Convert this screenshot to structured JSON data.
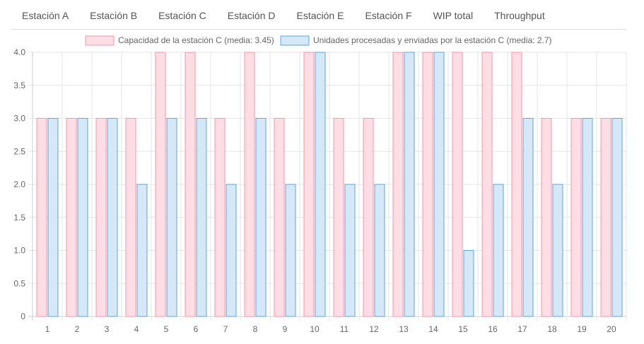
{
  "tabs": [
    "Estación A",
    "Estación B",
    "Estación C",
    "Estación D",
    "Estación E",
    "Estación F",
    "WIP total",
    "Throughput"
  ],
  "colors": {
    "capacity_fill": "#ffdde4",
    "capacity_stroke": "#ff93a8",
    "processed_fill": "#d4e8f8",
    "processed_stroke": "#5aa9e0",
    "grid": "#e6e6e6",
    "axis": "#cccccc",
    "text": "#666666"
  },
  "chart_data": {
    "type": "bar",
    "categories": [
      "1",
      "2",
      "3",
      "4",
      "5",
      "6",
      "7",
      "8",
      "9",
      "10",
      "11",
      "12",
      "13",
      "14",
      "15",
      "16",
      "17",
      "18",
      "19",
      "20"
    ],
    "series": [
      {
        "name": "Capacidad de la estación C (media: 3.45)",
        "values": [
          3,
          3,
          3,
          3,
          4,
          4,
          3,
          4,
          3,
          4,
          3,
          3,
          4,
          4,
          4,
          4,
          4,
          3,
          3,
          3
        ]
      },
      {
        "name": "Unidades procesadas y enviadas por la estación C (media: 2.7)",
        "values": [
          3,
          3,
          3,
          2,
          3,
          3,
          2,
          3,
          2,
          4,
          2,
          2,
          4,
          4,
          1,
          2,
          3,
          2,
          3,
          3
        ]
      }
    ],
    "ylim": [
      0,
      4
    ],
    "yticks": [
      "0",
      "0.5",
      "1.0",
      "1.5",
      "2.0",
      "2.5",
      "3.0",
      "3.5",
      "4.0"
    ],
    "grid": true,
    "legend_position": "top"
  }
}
